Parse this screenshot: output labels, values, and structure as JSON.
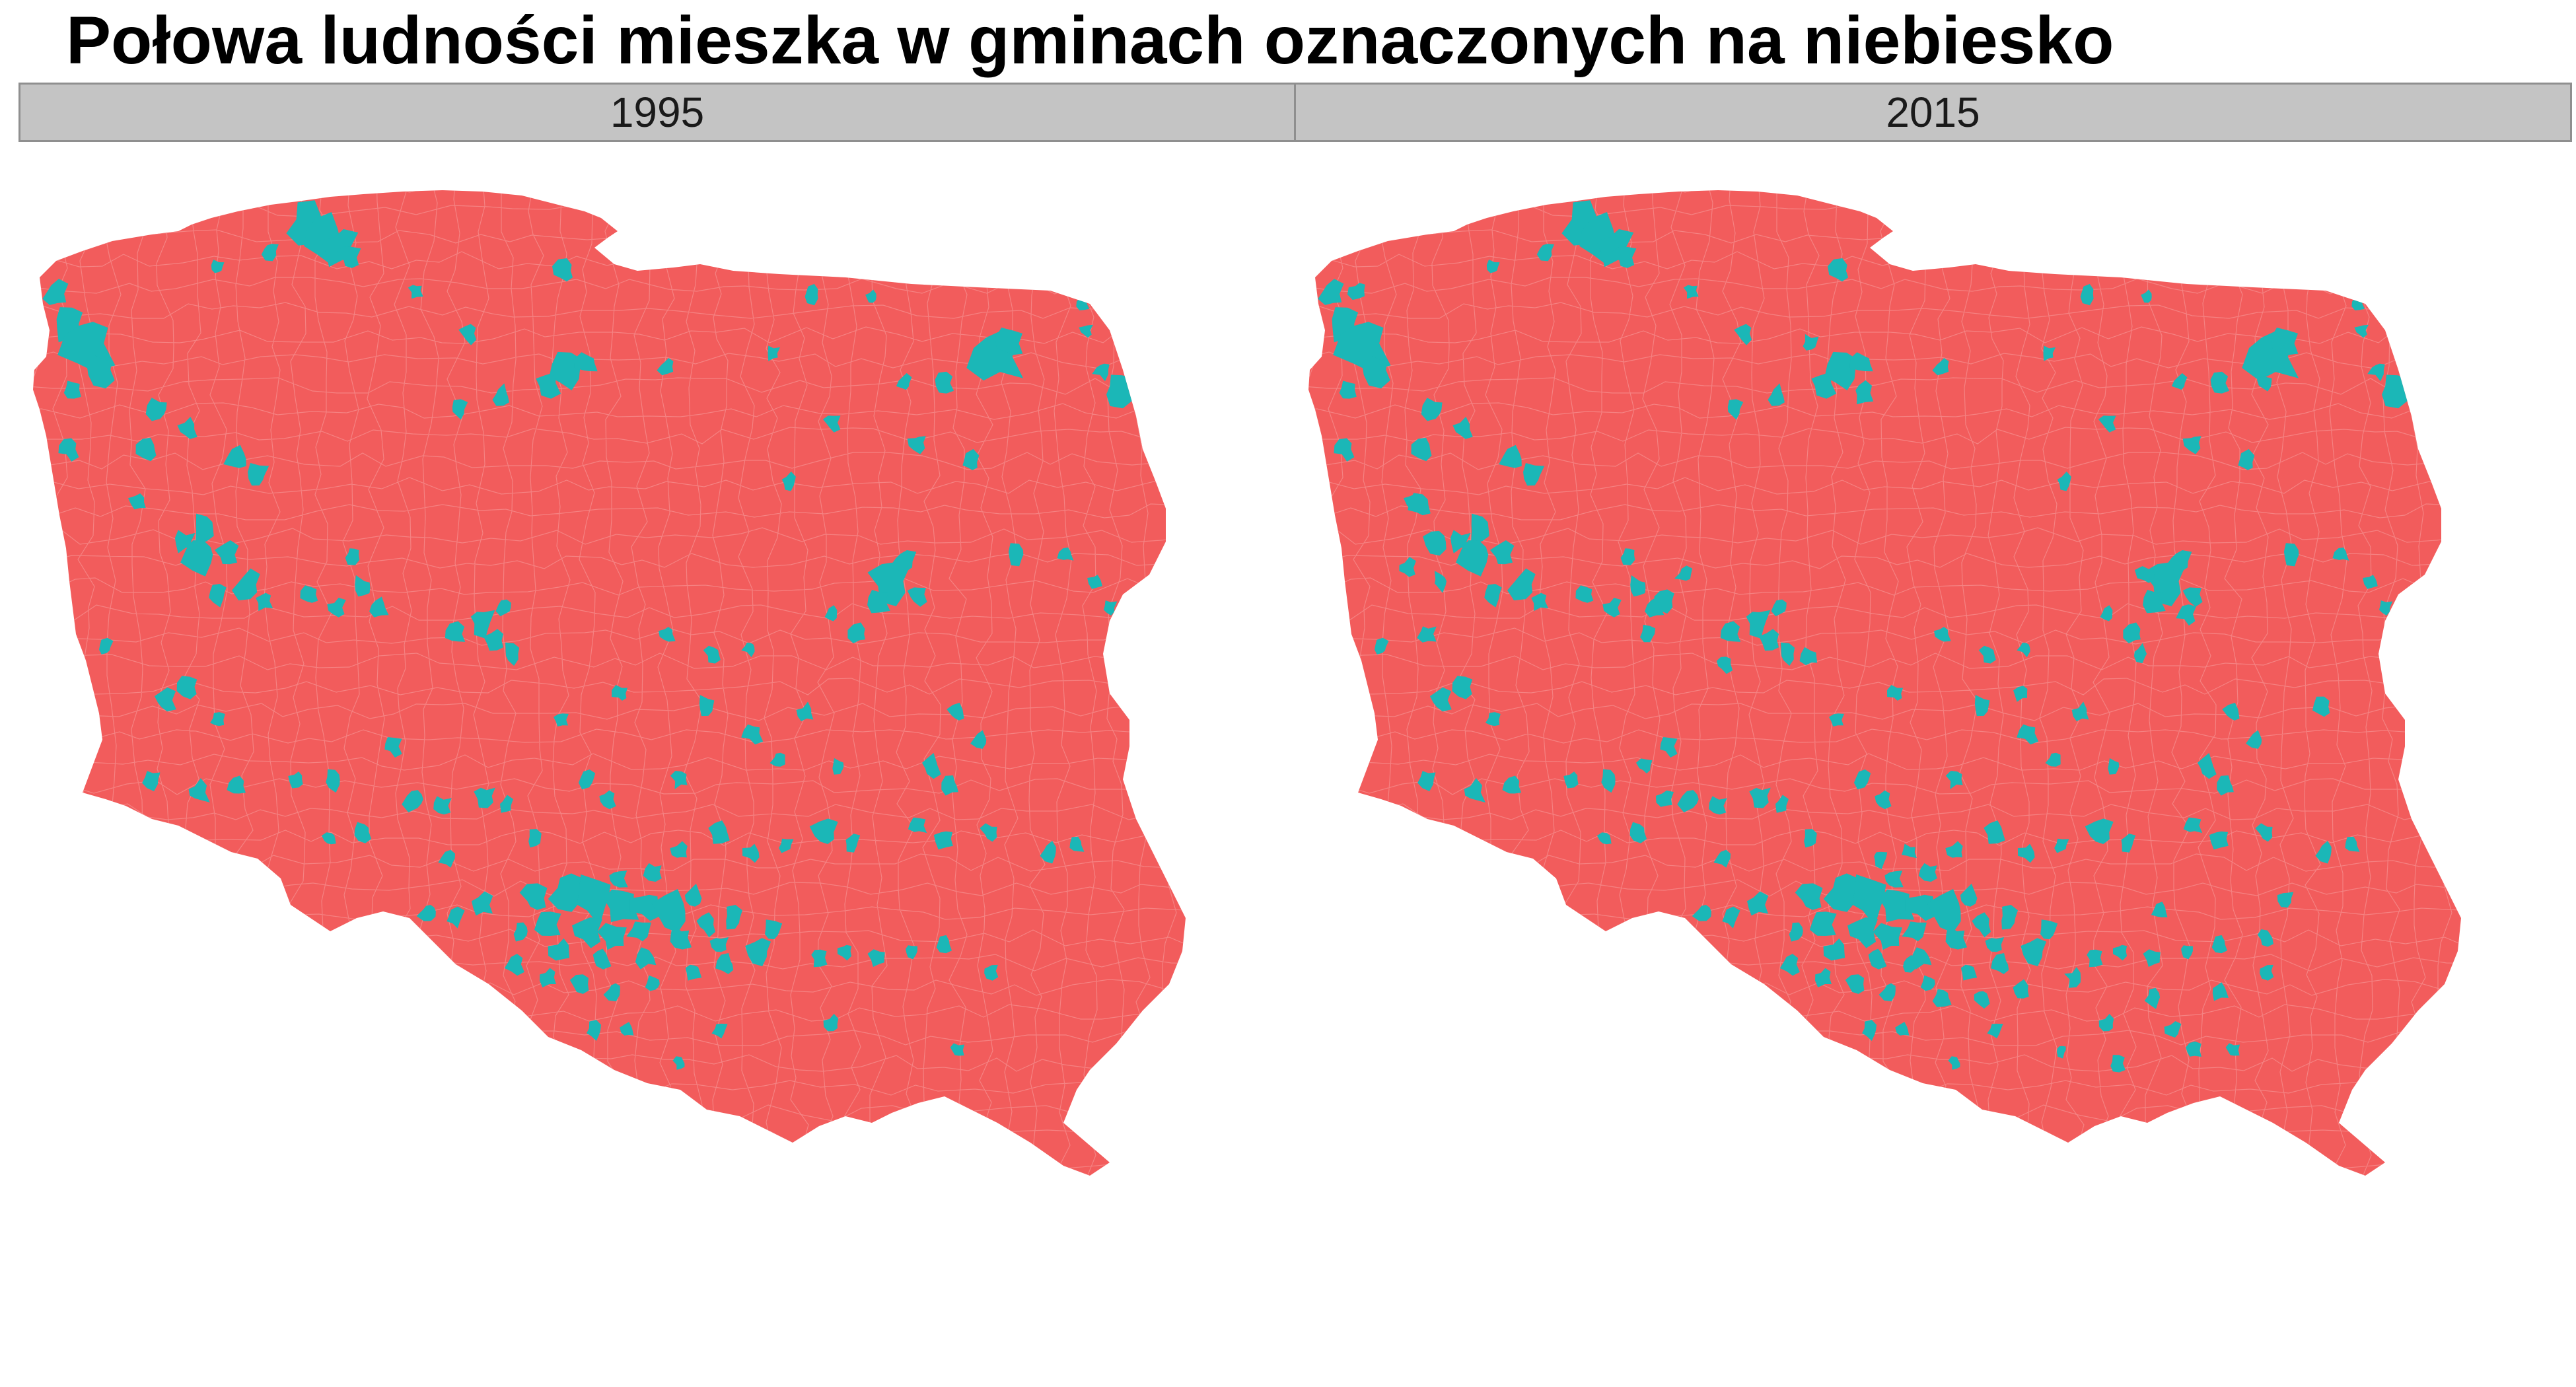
{
  "title": "Połowa ludności mieszka w gminach oznaczonych na niebiesko",
  "colors": {
    "majority": "#f25c5c",
    "half_population": "#1bb7b7",
    "borders": "#f7a3a3",
    "strip_background": "#c4c4c4",
    "strip_border": "#8f8f8f"
  },
  "panels": [
    {
      "label": "1995"
    },
    {
      "label": "2015"
    }
  ]
}
